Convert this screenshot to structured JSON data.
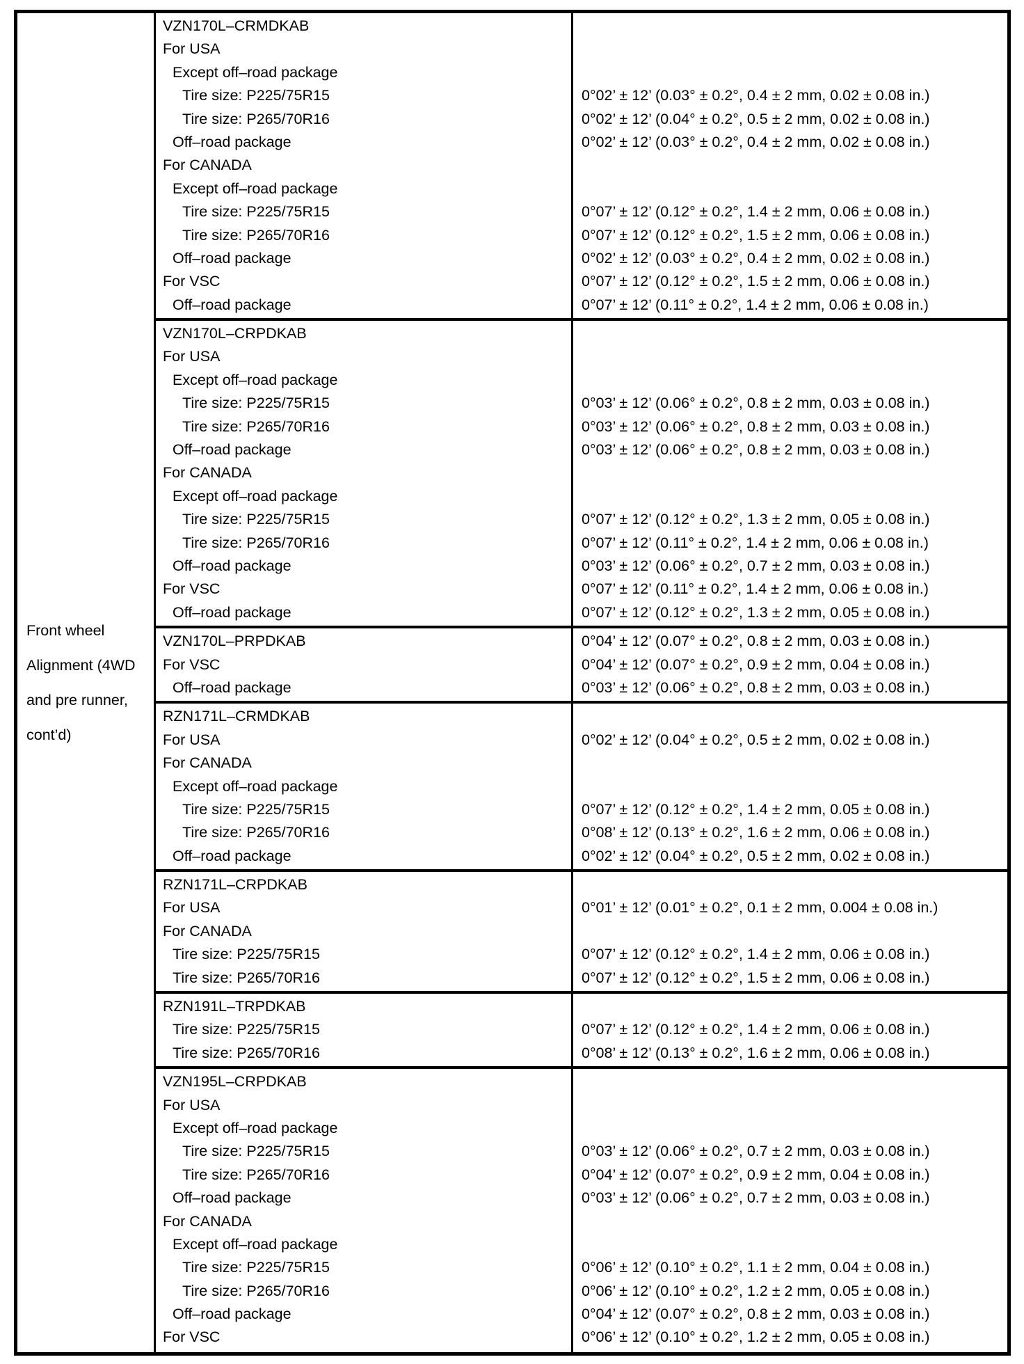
{
  "page": {
    "background": "#ffffff",
    "text_color": "#000000",
    "border_color": "#000000"
  },
  "row_group": {
    "header": "Front wheel Alignment (4WD and pre runner, cont’d)",
    "header_lines": [
      "Front wheel",
      "Alignment (4WD",
      "and pre runner,",
      "cont’d)"
    ]
  },
  "table": {
    "sections": [
      {
        "model": "VZN170L–CRMDKAB",
        "rows": [
          {
            "label": "VZN170L–CRMDKAB",
            "indent": 0,
            "value": ""
          },
          {
            "label": "For USA",
            "indent": 0,
            "value": ""
          },
          {
            "label": "Except off–road package",
            "indent": 1,
            "value": ""
          },
          {
            "label": "Tire size: P225/75R15",
            "indent": 2,
            "value": "0°02’ ± 12’ (0.03° ± 0.2°, 0.4 ± 2 mm, 0.02 ± 0.08 in.)"
          },
          {
            "label": "Tire size: P265/70R16",
            "indent": 2,
            "value": "0°02’ ± 12’ (0.04° ± 0.2°, 0.5 ± 2 mm, 0.02 ± 0.08 in.)"
          },
          {
            "label": "Off–road package",
            "indent": 1,
            "value": "0°02’ ± 12’ (0.03° ± 0.2°, 0.4 ± 2 mm, 0.02 ± 0.08 in.)"
          },
          {
            "label": "For CANADA",
            "indent": 0,
            "value": ""
          },
          {
            "label": "Except off–road package",
            "indent": 1,
            "value": ""
          },
          {
            "label": "Tire size: P225/75R15",
            "indent": 2,
            "value": "0°07’ ± 12’ (0.12° ± 0.2°, 1.4 ± 2 mm, 0.06 ± 0.08 in.)"
          },
          {
            "label": "Tire size: P265/70R16",
            "indent": 2,
            "value": "0°07’ ± 12’ (0.12° ± 0.2°, 1.5 ± 2 mm, 0.06 ± 0.08 in.)"
          },
          {
            "label": "Off–road package",
            "indent": 1,
            "value": "0°02’ ± 12’ (0.03° ± 0.2°, 0.4 ± 2 mm, 0.02 ± 0.08 in.)"
          },
          {
            "label": "For VSC",
            "indent": 0,
            "value": "0°07’ ± 12’ (0.12° ± 0.2°, 1.5 ± 2 mm, 0.06 ± 0.08 in.)"
          },
          {
            "label": "Off–road package",
            "indent": 1,
            "value": "0°07’ ± 12’ (0.11° ± 0.2°, 1.4 ± 2 mm, 0.06 ± 0.08 in.)"
          }
        ]
      },
      {
        "model": "VZN170L–CRPDKAB",
        "rows": [
          {
            "label": "VZN170L–CRPDKAB",
            "indent": 0,
            "value": ""
          },
          {
            "label": "For USA",
            "indent": 0,
            "value": ""
          },
          {
            "label": "Except off–road package",
            "indent": 1,
            "value": ""
          },
          {
            "label": "Tire size: P225/75R15",
            "indent": 2,
            "value": "0°03’ ± 12’ (0.06° ± 0.2°, 0.8 ± 2 mm, 0.03 ± 0.08 in.)"
          },
          {
            "label": "Tire size: P265/70R16",
            "indent": 2,
            "value": "0°03’ ± 12’ (0.06° ± 0.2°, 0.8 ± 2 mm, 0.03 ± 0.08 in.)"
          },
          {
            "label": "Off–road package",
            "indent": 1,
            "value": "0°03’ ± 12’ (0.06° ± 0.2°, 0.8 ± 2 mm, 0.03 ± 0.08 in.)"
          },
          {
            "label": "For CANADA",
            "indent": 0,
            "value": ""
          },
          {
            "label": "Except off–road package",
            "indent": 1,
            "value": ""
          },
          {
            "label": "Tire size: P225/75R15",
            "indent": 2,
            "value": "0°07’ ± 12’ (0.12° ± 0.2°, 1.3 ± 2 mm, 0.05 ± 0.08 in.)"
          },
          {
            "label": "Tire size: P265/70R16",
            "indent": 2,
            "value": "0°07’ ± 12’ (0.11° ± 0.2°, 1.4 ± 2 mm, 0.06 ± 0.08 in.)"
          },
          {
            "label": "Off–road package",
            "indent": 1,
            "value": "0°03’ ± 12’ (0.06° ± 0.2°, 0.7 ± 2 mm, 0.03 ± 0.08 in.)"
          },
          {
            "label": "For VSC",
            "indent": 0,
            "value": "0°07’ ± 12’ (0.11° ± 0.2°, 1.4 ± 2 mm, 0.06 ± 0.08 in.)"
          },
          {
            "label": "Off–road package",
            "indent": 1,
            "value": "0°07’ ± 12’ (0.12° ± 0.2°, 1.3 ± 2 mm, 0.05 ± 0.08 in.)"
          }
        ]
      },
      {
        "model": "VZN170L–PRPDKAB",
        "rows": [
          {
            "label": "VZN170L–PRPDKAB",
            "indent": 0,
            "value": "0°04’ ± 12’ (0.07° ± 0.2°, 0.8 ± 2 mm, 0.03 ± 0.08 in.)"
          },
          {
            "label": "For VSC",
            "indent": 0,
            "value": "0°04’ ± 12’ (0.07° ± 0.2°, 0.9 ± 2 mm, 0.04 ± 0.08 in.)"
          },
          {
            "label": "Off–road package",
            "indent": 1,
            "value": "0°03’ ± 12’ (0.06° ± 0.2°, 0.8 ± 2 mm, 0.03 ± 0.08 in.)"
          }
        ]
      },
      {
        "model": "RZN171L–CRMDKAB",
        "rows": [
          {
            "label": "RZN171L–CRMDKAB",
            "indent": 0,
            "value": ""
          },
          {
            "label": "For USA",
            "indent": 0,
            "value": "0°02’ ± 12’ (0.04° ± 0.2°, 0.5 ± 2 mm, 0.02 ± 0.08 in.)"
          },
          {
            "label": "For CANADA",
            "indent": 0,
            "value": ""
          },
          {
            "label": "Except off–road package",
            "indent": 1,
            "value": ""
          },
          {
            "label": "Tire size: P225/75R15",
            "indent": 2,
            "value": "0°07’ ± 12’ (0.12° ± 0.2°, 1.4 ± 2 mm, 0.05 ± 0.08 in.)"
          },
          {
            "label": "Tire size: P265/70R16",
            "indent": 2,
            "value": "0°08’ ± 12’ (0.13° ± 0.2°, 1.6 ± 2 mm, 0.06 ± 0.08 in.)"
          },
          {
            "label": "Off–road package",
            "indent": 1,
            "value": "0°02’ ± 12’ (0.04° ± 0.2°, 0.5 ± 2 mm, 0.02 ± 0.08 in.)"
          }
        ]
      },
      {
        "model": "RZN171L–CRPDKAB",
        "rows": [
          {
            "label": "RZN171L–CRPDKAB",
            "indent": 0,
            "value": ""
          },
          {
            "label": "For USA",
            "indent": 0,
            "value": "0°01’ ± 12’ (0.01° ± 0.2°, 0.1 ± 2 mm, 0.004 ± 0.08 in.)"
          },
          {
            "label": "For CANADA",
            "indent": 0,
            "value": ""
          },
          {
            "label": "Tire size: P225/75R15",
            "indent": 1,
            "value": "0°07’ ± 12’ (0.12° ± 0.2°, 1.4 ± 2 mm, 0.06 ± 0.08 in.)"
          },
          {
            "label": "Tire size: P265/70R16",
            "indent": 1,
            "value": "0°07’ ± 12’ (0.12° ± 0.2°, 1.5 ± 2 mm, 0.06 ± 0.08 in.)"
          }
        ]
      },
      {
        "model": "RZN191L–TRPDKAB",
        "rows": [
          {
            "label": "RZN191L–TRPDKAB",
            "indent": 0,
            "value": ""
          },
          {
            "label": "Tire size: P225/75R15",
            "indent": 1,
            "value": "0°07’ ± 12’ (0.12° ± 0.2°, 1.4 ± 2 mm, 0.06 ± 0.08 in.)"
          },
          {
            "label": "Tire size: P265/70R16",
            "indent": 1,
            "value": "0°08’ ± 12’ (0.13° ± 0.2°, 1.6 ± 2 mm, 0.06 ± 0.08 in.)"
          }
        ]
      },
      {
        "model": "VZN195L–CRPDKAB",
        "rows": [
          {
            "label": "VZN195L–CRPDKAB",
            "indent": 0,
            "value": ""
          },
          {
            "label": "For USA",
            "indent": 0,
            "value": ""
          },
          {
            "label": "Except off–road package",
            "indent": 1,
            "value": ""
          },
          {
            "label": "Tire size: P225/75R15",
            "indent": 2,
            "value": "0°03’ ± 12’ (0.06° ± 0.2°, 0.7 ± 2 mm, 0.03 ± 0.08 in.)"
          },
          {
            "label": "Tire size: P265/70R16",
            "indent": 2,
            "value": "0°04’ ± 12’ (0.07° ± 0.2°, 0.9 ± 2 mm, 0.04 ± 0.08 in.)"
          },
          {
            "label": "Off–road package",
            "indent": 1,
            "value": "0°03’ ± 12’ (0.06° ± 0.2°, 0.7 ± 2 mm, 0.03 ± 0.08 in.)"
          },
          {
            "label": "For CANADA",
            "indent": 0,
            "value": ""
          },
          {
            "label": "Except off–road package",
            "indent": 1,
            "value": ""
          },
          {
            "label": "Tire size: P225/75R15",
            "indent": 2,
            "value": "0°06’ ± 12’ (0.10° ± 0.2°, 1.1 ± 2 mm, 0.04 ± 0.08 in.)"
          },
          {
            "label": "Tire size: P265/70R16",
            "indent": 2,
            "value": "0°06’ ± 12’ (0.10° ± 0.2°, 1.2 ± 2 mm, 0.05 ± 0.08 in.)"
          },
          {
            "label": "Off–road package",
            "indent": 1,
            "value": "0°04’ ± 12’ (0.07° ± 0.2°, 0.8 ± 2 mm, 0.03 ± 0.08 in.)"
          },
          {
            "label": "For VSC",
            "indent": 0,
            "value": "0°06’ ± 12’ (0.10° ± 0.2°, 1.2 ± 2 mm, 0.05 ± 0.08 in.)"
          }
        ]
      }
    ]
  }
}
